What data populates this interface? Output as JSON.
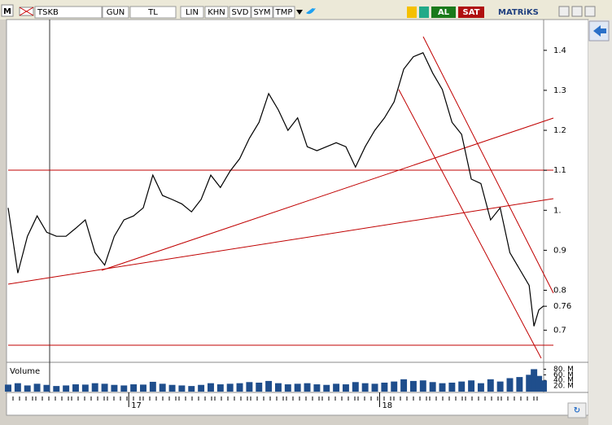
{
  "toolbar": {
    "logo": "M",
    "symbol": "TSKB",
    "period": "GUN",
    "currency": "TL",
    "scale": "LIN",
    "khn": "KHN",
    "svd": "SVD",
    "sym": "SYM",
    "tmp": "TMP",
    "buy": "AL",
    "sell": "SAT",
    "brand": "MATRiKS"
  },
  "chart_data": {
    "type": "line",
    "volume_label": "Volume",
    "x": [
      -25,
      -23,
      -21,
      -19,
      -17,
      -15,
      -13,
      -11,
      -9,
      -7,
      -5,
      -3,
      -1,
      1,
      3,
      5,
      7,
      9,
      11,
      13,
      15,
      17,
      19,
      21,
      23,
      25,
      27,
      29,
      31,
      33,
      35,
      37,
      39,
      41,
      43,
      45,
      47,
      49,
      51,
      53,
      55,
      57,
      59,
      61,
      63,
      65,
      67,
      69,
      71,
      73,
      75,
      77,
      79,
      81,
      83,
      84,
      85,
      86
    ],
    "series": [
      {
        "name": "TSKB",
        "color": "#000000",
        "values": [
          1.006,
          0.843,
          0.935,
          0.986,
          0.945,
          0.935,
          0.935,
          0.955,
          0.976,
          0.894,
          0.863,
          0.935,
          0.976,
          0.986,
          1.006,
          1.088,
          1.037,
          1.027,
          1.016,
          0.996,
          1.027,
          1.088,
          1.057,
          1.098,
          1.129,
          1.18,
          1.22,
          1.292,
          1.251,
          1.2,
          1.231,
          1.159,
          1.149,
          1.159,
          1.169,
          1.159,
          1.108,
          1.159,
          1.2,
          1.231,
          1.271,
          1.353,
          1.384,
          1.394,
          1.343,
          1.302,
          1.22,
          1.19,
          1.078,
          1.067,
          0.976,
          1.006,
          0.894,
          0.853,
          0.812,
          0.71,
          0.751,
          0.761
        ]
      },
      {
        "name": "Volume",
        "color": "#1f4e8c",
        "axis": "y2",
        "values": [
          25,
          30,
          22,
          28,
          24,
          20,
          22,
          26,
          25,
          30,
          28,
          24,
          22,
          26,
          25,
          35,
          28,
          24,
          22,
          20,
          24,
          30,
          26,
          28,
          30,
          34,
          32,
          38,
          30,
          26,
          28,
          30,
          26,
          24,
          28,
          26,
          34,
          30,
          28,
          32,
          36,
          44,
          38,
          40,
          34,
          30,
          32,
          36,
          40,
          30,
          44,
          36,
          48,
          52,
          60,
          80,
          56,
          40
        ]
      }
    ],
    "xlim": [
      -25,
      86
    ],
    "xticks": [
      {
        "value": 0,
        "label": "17"
      },
      {
        "value": 52,
        "label": "18"
      }
    ],
    "ylim": [
      0.63,
      1.475
    ],
    "yticks": [
      1.4,
      1.3,
      1.2,
      1.1,
      {
        "value": 1,
        "label": "1."
      },
      0.9,
      0.8,
      0.76,
      0.7
    ],
    "y2lim": [
      0,
      90
    ],
    "y2ticks": [
      {
        "value": 80,
        "label": "80. M"
      },
      {
        "value": 60,
        "label": "60. M"
      },
      {
        "value": 40,
        "label": "40. M"
      },
      {
        "value": 20,
        "label": "20. M"
      }
    ]
  }
}
